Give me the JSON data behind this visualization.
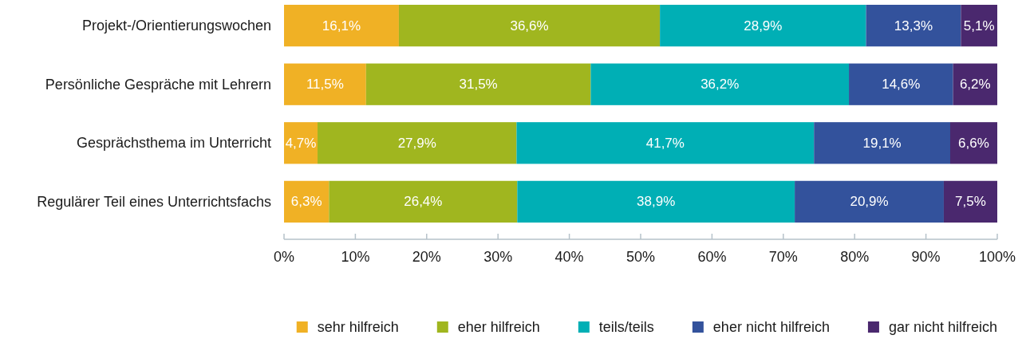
{
  "chart_data": {
    "type": "bar",
    "orientation": "horizontal",
    "stacked": true,
    "categories": [
      "Projekt-/Orientierungswochen",
      "Persönliche Gespräche mit Lehrern",
      "Gesprächsthema im Unterricht",
      "Regulärer Teil eines Unterrichtsfachs"
    ],
    "series": [
      {
        "name": "sehr hilfreich",
        "color": "#f0b125",
        "values": [
          16.1,
          11.5,
          4.7,
          6.3
        ],
        "value_labels": [
          "16,1%",
          "11,5%",
          "4,7%",
          "6,3%"
        ]
      },
      {
        "name": "eher hilfreich",
        "color": "#a0b61f",
        "values": [
          36.6,
          31.5,
          27.9,
          26.4
        ],
        "value_labels": [
          "36,6%",
          "31,5%",
          "27,9%",
          "26,4%"
        ]
      },
      {
        "name": "teils/teils",
        "color": "#00afb5",
        "values": [
          28.9,
          36.2,
          41.7,
          38.9
        ],
        "value_labels": [
          "28,9%",
          "36,2%",
          "41,7%",
          "38,9%"
        ]
      },
      {
        "name": "eher nicht hilfreich",
        "color": "#33529c",
        "values": [
          13.3,
          14.6,
          19.1,
          20.9
        ],
        "value_labels": [
          "13,3%",
          "14,6%",
          "19,1%",
          "20,9%"
        ]
      },
      {
        "name": "gar nicht hilfreich",
        "color": "#4a286e",
        "values": [
          5.1,
          6.2,
          6.6,
          7.5
        ],
        "value_labels": [
          "5,1%",
          "6,2%",
          "6,6%",
          "7,5%"
        ]
      }
    ],
    "xlim": [
      0,
      100
    ],
    "xticks": [
      {
        "value": 0,
        "label": "0%"
      },
      {
        "value": 10,
        "label": "10%"
      },
      {
        "value": 20,
        "label": "20%"
      },
      {
        "value": 30,
        "label": "30%"
      },
      {
        "value": 40,
        "label": "40%"
      },
      {
        "value": 50,
        "label": "50%"
      },
      {
        "value": 60,
        "label": "60%"
      },
      {
        "value": 70,
        "label": "70%"
      },
      {
        "value": 80,
        "label": "80%"
      },
      {
        "value": 90,
        "label": "90%"
      },
      {
        "value": 100,
        "label": "100%"
      }
    ],
    "legend": "bottom",
    "grid": false
  }
}
